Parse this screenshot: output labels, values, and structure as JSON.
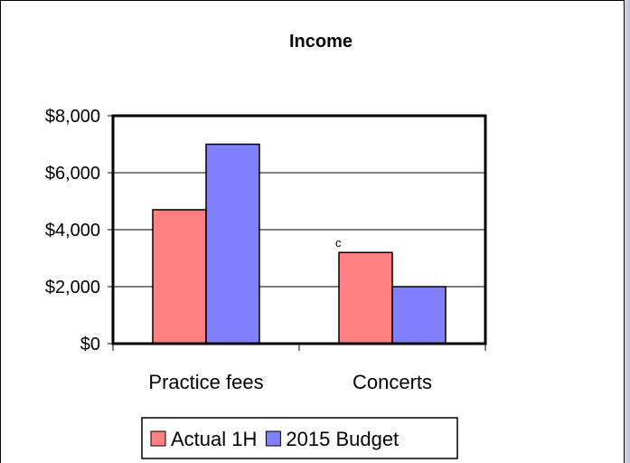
{
  "chart_data": {
    "type": "bar",
    "title": "Income",
    "categories": [
      "Practice fees",
      "Concerts"
    ],
    "series": [
      {
        "name": "Actual 1H",
        "values": [
          4700,
          3200
        ],
        "color": "#ff8080"
      },
      {
        "name": "2015 Budget",
        "values": [
          7000,
          2000
        ],
        "color": "#8080ff"
      }
    ],
    "ylim": [
      0,
      8000
    ],
    "yticks": [
      "$0",
      "$2,000",
      "$4,000",
      "$6,000",
      "$8,000"
    ],
    "ytick_values": [
      0,
      2000,
      4000,
      6000,
      8000
    ],
    "grid": true,
    "legend": "bottom",
    "annotations": [
      {
        "text": "c",
        "category": "Concerts",
        "series": "Actual 1H"
      }
    ]
  }
}
